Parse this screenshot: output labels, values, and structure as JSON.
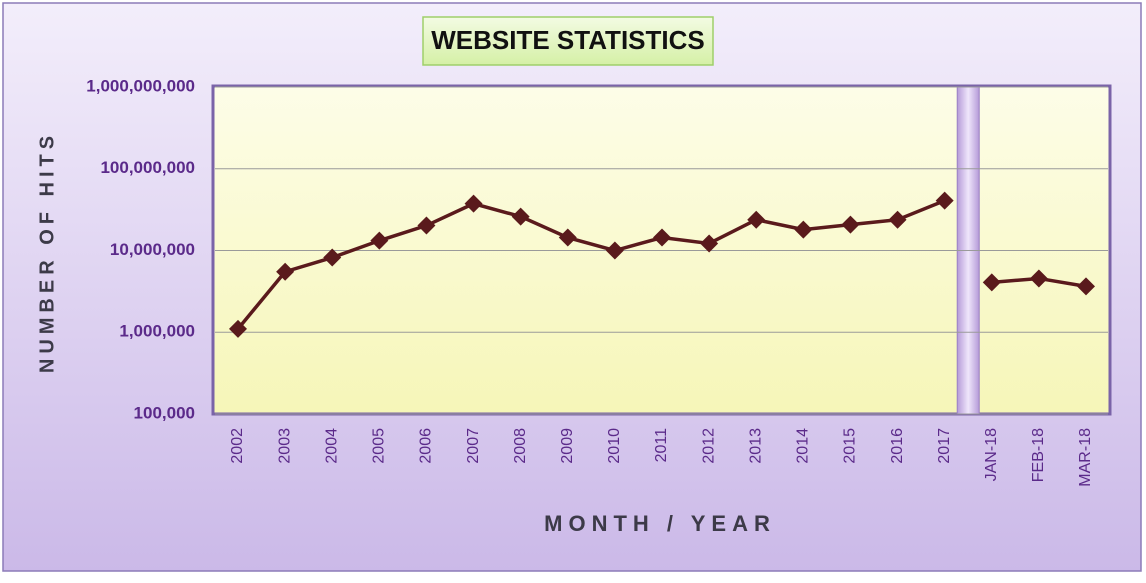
{
  "chart_data": {
    "type": "line",
    "title": "WEBSITE STATISTICS",
    "x_label": "MONTH / YEAR",
    "y_label": "NUMBER OF HITS",
    "categories": [
      "2002",
      "2003",
      "2004",
      "2005",
      "2006",
      "2007",
      "2008",
      "2009",
      "2010",
      "2011",
      "2012",
      "2013",
      "2014",
      "2015",
      "2016",
      "2017",
      "JAN-18",
      "FEB-18",
      "MAR-18"
    ],
    "series": [
      {
        "color": "#5a1a1c",
        "values": [
          1100000,
          5500000,
          8200000,
          13200000,
          20200000,
          37400000,
          26000000,
          14400000,
          10000000,
          14400000,
          12200000,
          23800000,
          18000000,
          20700000,
          23800000,
          40700000,
          null,
          null,
          null
        ]
      },
      {
        "color": "#5a1a1c",
        "values": [
          null,
          null,
          null,
          null,
          null,
          null,
          null,
          null,
          null,
          null,
          null,
          null,
          null,
          null,
          null,
          null,
          4070000,
          4550000,
          3640000
        ]
      }
    ],
    "log_scale": true,
    "ylim": [
      100000,
      1000000000
    ],
    "yticks": [
      {
        "value": 100000,
        "label": "100,000"
      },
      {
        "value": 1000000,
        "label": "1,000,000"
      },
      {
        "value": 10000000,
        "label": "10,000,000"
      },
      {
        "value": 100000000,
        "label": "100,000,000"
      },
      {
        "value": 1000000000,
        "label": "1,000,000,000"
      }
    ],
    "grid": true
  }
}
